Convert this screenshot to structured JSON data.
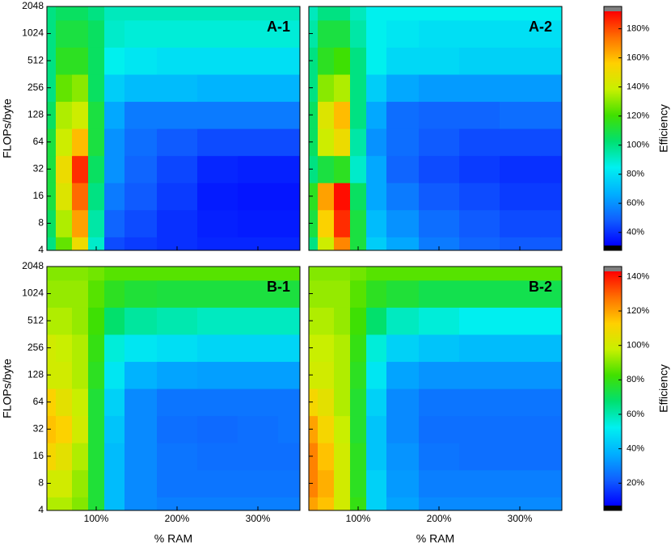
{
  "chart_data": [
    {
      "type": "heatmap",
      "panel_label": "A-1",
      "ylabel": "FLOPs/byte",
      "log_y": true,
      "x": [
        40,
        60,
        80,
        100,
        120,
        150,
        200,
        250,
        300,
        350
      ],
      "y": [
        4,
        8,
        16,
        32,
        64,
        128,
        256,
        512,
        1024,
        2048
      ],
      "z": [
        [
          100,
          125,
          150,
          90,
          45,
          42,
          40,
          38,
          38,
          38
        ],
        [
          105,
          135,
          165,
          95,
          50,
          45,
          40,
          37,
          36,
          36
        ],
        [
          110,
          145,
          175,
          100,
          55,
          48,
          42,
          36,
          35,
          35
        ],
        [
          110,
          150,
          185,
          105,
          60,
          50,
          44,
          38,
          37,
          37
        ],
        [
          110,
          140,
          160,
          110,
          60,
          52,
          48,
          45,
          45,
          45
        ],
        [
          105,
          135,
          140,
          110,
          65,
          55,
          55,
          55,
          55,
          55
        ],
        [
          100,
          125,
          130,
          105,
          75,
          70,
          70,
          68,
          68,
          68
        ],
        [
          100,
          115,
          115,
          105,
          85,
          82,
          80,
          80,
          80,
          80
        ],
        [
          100,
          110,
          110,
          105,
          90,
          88,
          88,
          88,
          88,
          88
        ],
        [
          100,
          105,
          105,
          100,
          92,
          92,
          92,
          92,
          92,
          92
        ]
      ],
      "xlim": [
        39,
        352
      ],
      "ylim": [
        4,
        2048
      ],
      "xticks": [
        {
          "value": 100,
          "label": "100%"
        },
        {
          "value": 200,
          "label": "200%"
        },
        {
          "value": 300,
          "label": "300%"
        }
      ],
      "yticks": [
        4,
        8,
        16,
        32,
        64,
        128,
        256,
        512,
        1024,
        2048
      ],
      "clim": [
        31,
        192
      ],
      "colormap": [
        "#0000ff",
        "#1060ff",
        "#00b0ff",
        "#00f0f0",
        "#00e070",
        "#40e000",
        "#c8f000",
        "#ffd000",
        "#ff7000",
        "#ff0000"
      ]
    },
    {
      "type": "heatmap",
      "panel_label": "A-2",
      "log_y": true,
      "x": [
        40,
        60,
        80,
        100,
        120,
        150,
        200,
        250,
        300,
        350
      ],
      "y": [
        4,
        8,
        16,
        32,
        64,
        128,
        256,
        512,
        1024,
        2048
      ],
      "z": [
        [
          100,
          140,
          170,
          110,
          75,
          65,
          55,
          50,
          48,
          48
        ],
        [
          110,
          155,
          185,
          110,
          70,
          60,
          52,
          48,
          45,
          45
        ],
        [
          115,
          165,
          190,
          105,
          65,
          55,
          48,
          45,
          42,
          42
        ],
        [
          100,
          110,
          115,
          90,
          65,
          50,
          45,
          42,
          40,
          40
        ],
        [
          105,
          140,
          150,
          95,
          60,
          52,
          48,
          45,
          45,
          45
        ],
        [
          105,
          145,
          160,
          100,
          65,
          52,
          50,
          50,
          52,
          52
        ],
        [
          100,
          130,
          135,
          100,
          75,
          65,
          62,
          62,
          62,
          62
        ],
        [
          100,
          115,
          120,
          100,
          85,
          78,
          78,
          76,
          76,
          76
        ],
        [
          95,
          110,
          110,
          95,
          85,
          82,
          80,
          80,
          80,
          80
        ],
        [
          92,
          100,
          100,
          92,
          85,
          85,
          85,
          85,
          85,
          85
        ]
      ],
      "xlim": [
        39,
        352
      ],
      "ylim": [
        4,
        2048
      ],
      "xticks": [
        {
          "value": 100,
          "label": "100%"
        },
        {
          "value": 200,
          "label": "200%"
        },
        {
          "value": 300,
          "label": "300%"
        }
      ],
      "yticks": [
        4,
        8,
        16,
        32,
        64,
        128,
        256,
        512,
        1024,
        2048
      ],
      "clim": [
        31,
        192
      ],
      "colormap": [
        "#0000ff",
        "#1060ff",
        "#00b0ff",
        "#00f0f0",
        "#00e070",
        "#40e000",
        "#c8f000",
        "#ffd000",
        "#ff7000",
        "#ff0000"
      ],
      "colorbar": {
        "label": "Efficiency",
        "under_color": "#000000",
        "over_color": "#808080",
        "ticks": [
          {
            "value": 40,
            "label": "40%"
          },
          {
            "value": 60,
            "label": "60%"
          },
          {
            "value": 80,
            "label": "80%"
          },
          {
            "value": 100,
            "label": "100%"
          },
          {
            "value": 120,
            "label": "120%"
          },
          {
            "value": 140,
            "label": "140%"
          },
          {
            "value": 160,
            "label": "160%"
          },
          {
            "value": 180,
            "label": "180%"
          }
        ]
      }
    },
    {
      "type": "heatmap",
      "panel_label": "B-1",
      "ylabel": "FLOPs/byte",
      "xlabel": "% RAM",
      "log_y": true,
      "x": [
        40,
        60,
        80,
        100,
        120,
        150,
        200,
        250,
        300,
        350
      ],
      "y": [
        4,
        8,
        16,
        32,
        64,
        128,
        256,
        512,
        1024,
        2048
      ],
      "z": [
        [
          95,
          95,
          90,
          75,
          40,
          30,
          28,
          28,
          28,
          28
        ],
        [
          100,
          100,
          92,
          75,
          40,
          30,
          26,
          26,
          26,
          26
        ],
        [
          110,
          105,
          95,
          75,
          40,
          30,
          26,
          25,
          25,
          25
        ],
        [
          115,
          112,
          100,
          75,
          42,
          30,
          25,
          24,
          25,
          26
        ],
        [
          112,
          105,
          98,
          75,
          45,
          30,
          26,
          26,
          26,
          26
        ],
        [
          100,
          100,
          95,
          78,
          50,
          38,
          35,
          34,
          34,
          34
        ],
        [
          100,
          98,
          95,
          80,
          55,
          50,
          48,
          46,
          46,
          46
        ],
        [
          95,
          95,
          92,
          82,
          68,
          62,
          60,
          58,
          58,
          58
        ],
        [
          92,
          92,
          92,
          85,
          78,
          75,
          74,
          74,
          74,
          74
        ],
        [
          90,
          90,
          90,
          88,
          85,
          85,
          85,
          85,
          85,
          85
        ]
      ],
      "xlim": [
        39,
        352
      ],
      "ylim": [
        4,
        2048
      ],
      "xticks": [
        {
          "value": 100,
          "label": "100%"
        },
        {
          "value": 200,
          "label": "200%"
        },
        {
          "value": 300,
          "label": "300%"
        }
      ],
      "yticks": [
        4,
        8,
        16,
        32,
        64,
        128,
        256,
        512,
        1024,
        2048
      ],
      "clim": [
        7,
        143
      ],
      "colormap": [
        "#0000ff",
        "#1060ff",
        "#00b0ff",
        "#00f0f0",
        "#00e070",
        "#40e000",
        "#c8f000",
        "#ffd000",
        "#ff7000",
        "#ff0000"
      ]
    },
    {
      "type": "heatmap",
      "panel_label": "B-2",
      "xlabel": "% RAM",
      "log_y": true,
      "x": [
        40,
        60,
        80,
        100,
        120,
        150,
        200,
        250,
        300,
        350
      ],
      "y": [
        4,
        8,
        16,
        32,
        64,
        128,
        256,
        512,
        1024,
        2048
      ],
      "z": [
        [
          120,
          115,
          100,
          80,
          45,
          35,
          30,
          30,
          30,
          30
        ],
        [
          125,
          118,
          100,
          78,
          45,
          33,
          28,
          28,
          28,
          28
        ],
        [
          125,
          115,
          100,
          78,
          42,
          32,
          26,
          25,
          25,
          25
        ],
        [
          120,
          110,
          98,
          76,
          42,
          30,
          25,
          25,
          25,
          25
        ],
        [
          110,
          105,
          95,
          76,
          45,
          30,
          26,
          26,
          26,
          26
        ],
        [
          100,
          100,
          95,
          78,
          50,
          35,
          32,
          32,
          32,
          32
        ],
        [
          98,
          98,
          95,
          80,
          55,
          45,
          42,
          40,
          40,
          40
        ],
        [
          95,
          95,
          92,
          82,
          68,
          58,
          55,
          52,
          52,
          52
        ],
        [
          92,
          92,
          92,
          85,
          78,
          75,
          72,
          72,
          72,
          72
        ],
        [
          90,
          90,
          90,
          88,
          85,
          85,
          85,
          85,
          85,
          85
        ]
      ],
      "xlim": [
        39,
        352
      ],
      "ylim": [
        4,
        2048
      ],
      "xticks": [
        {
          "value": 100,
          "label": "100%"
        },
        {
          "value": 200,
          "label": "200%"
        },
        {
          "value": 300,
          "label": "300%"
        }
      ],
      "yticks": [
        4,
        8,
        16,
        32,
        64,
        128,
        256,
        512,
        1024,
        2048
      ],
      "clim": [
        7,
        143
      ],
      "colormap": [
        "#0000ff",
        "#1060ff",
        "#00b0ff",
        "#00f0f0",
        "#00e070",
        "#40e000",
        "#c8f000",
        "#ffd000",
        "#ff7000",
        "#ff0000"
      ],
      "colorbar": {
        "label": "Efficiency",
        "under_color": "#000000",
        "over_color": "#808080",
        "ticks": [
          {
            "value": 20,
            "label": "20%"
          },
          {
            "value": 40,
            "label": "40%"
          },
          {
            "value": 60,
            "label": "60%"
          },
          {
            "value": 80,
            "label": "80%"
          },
          {
            "value": 100,
            "label": "100%"
          },
          {
            "value": 120,
            "label": "120%"
          },
          {
            "value": 140,
            "label": "140%"
          }
        ]
      }
    }
  ]
}
